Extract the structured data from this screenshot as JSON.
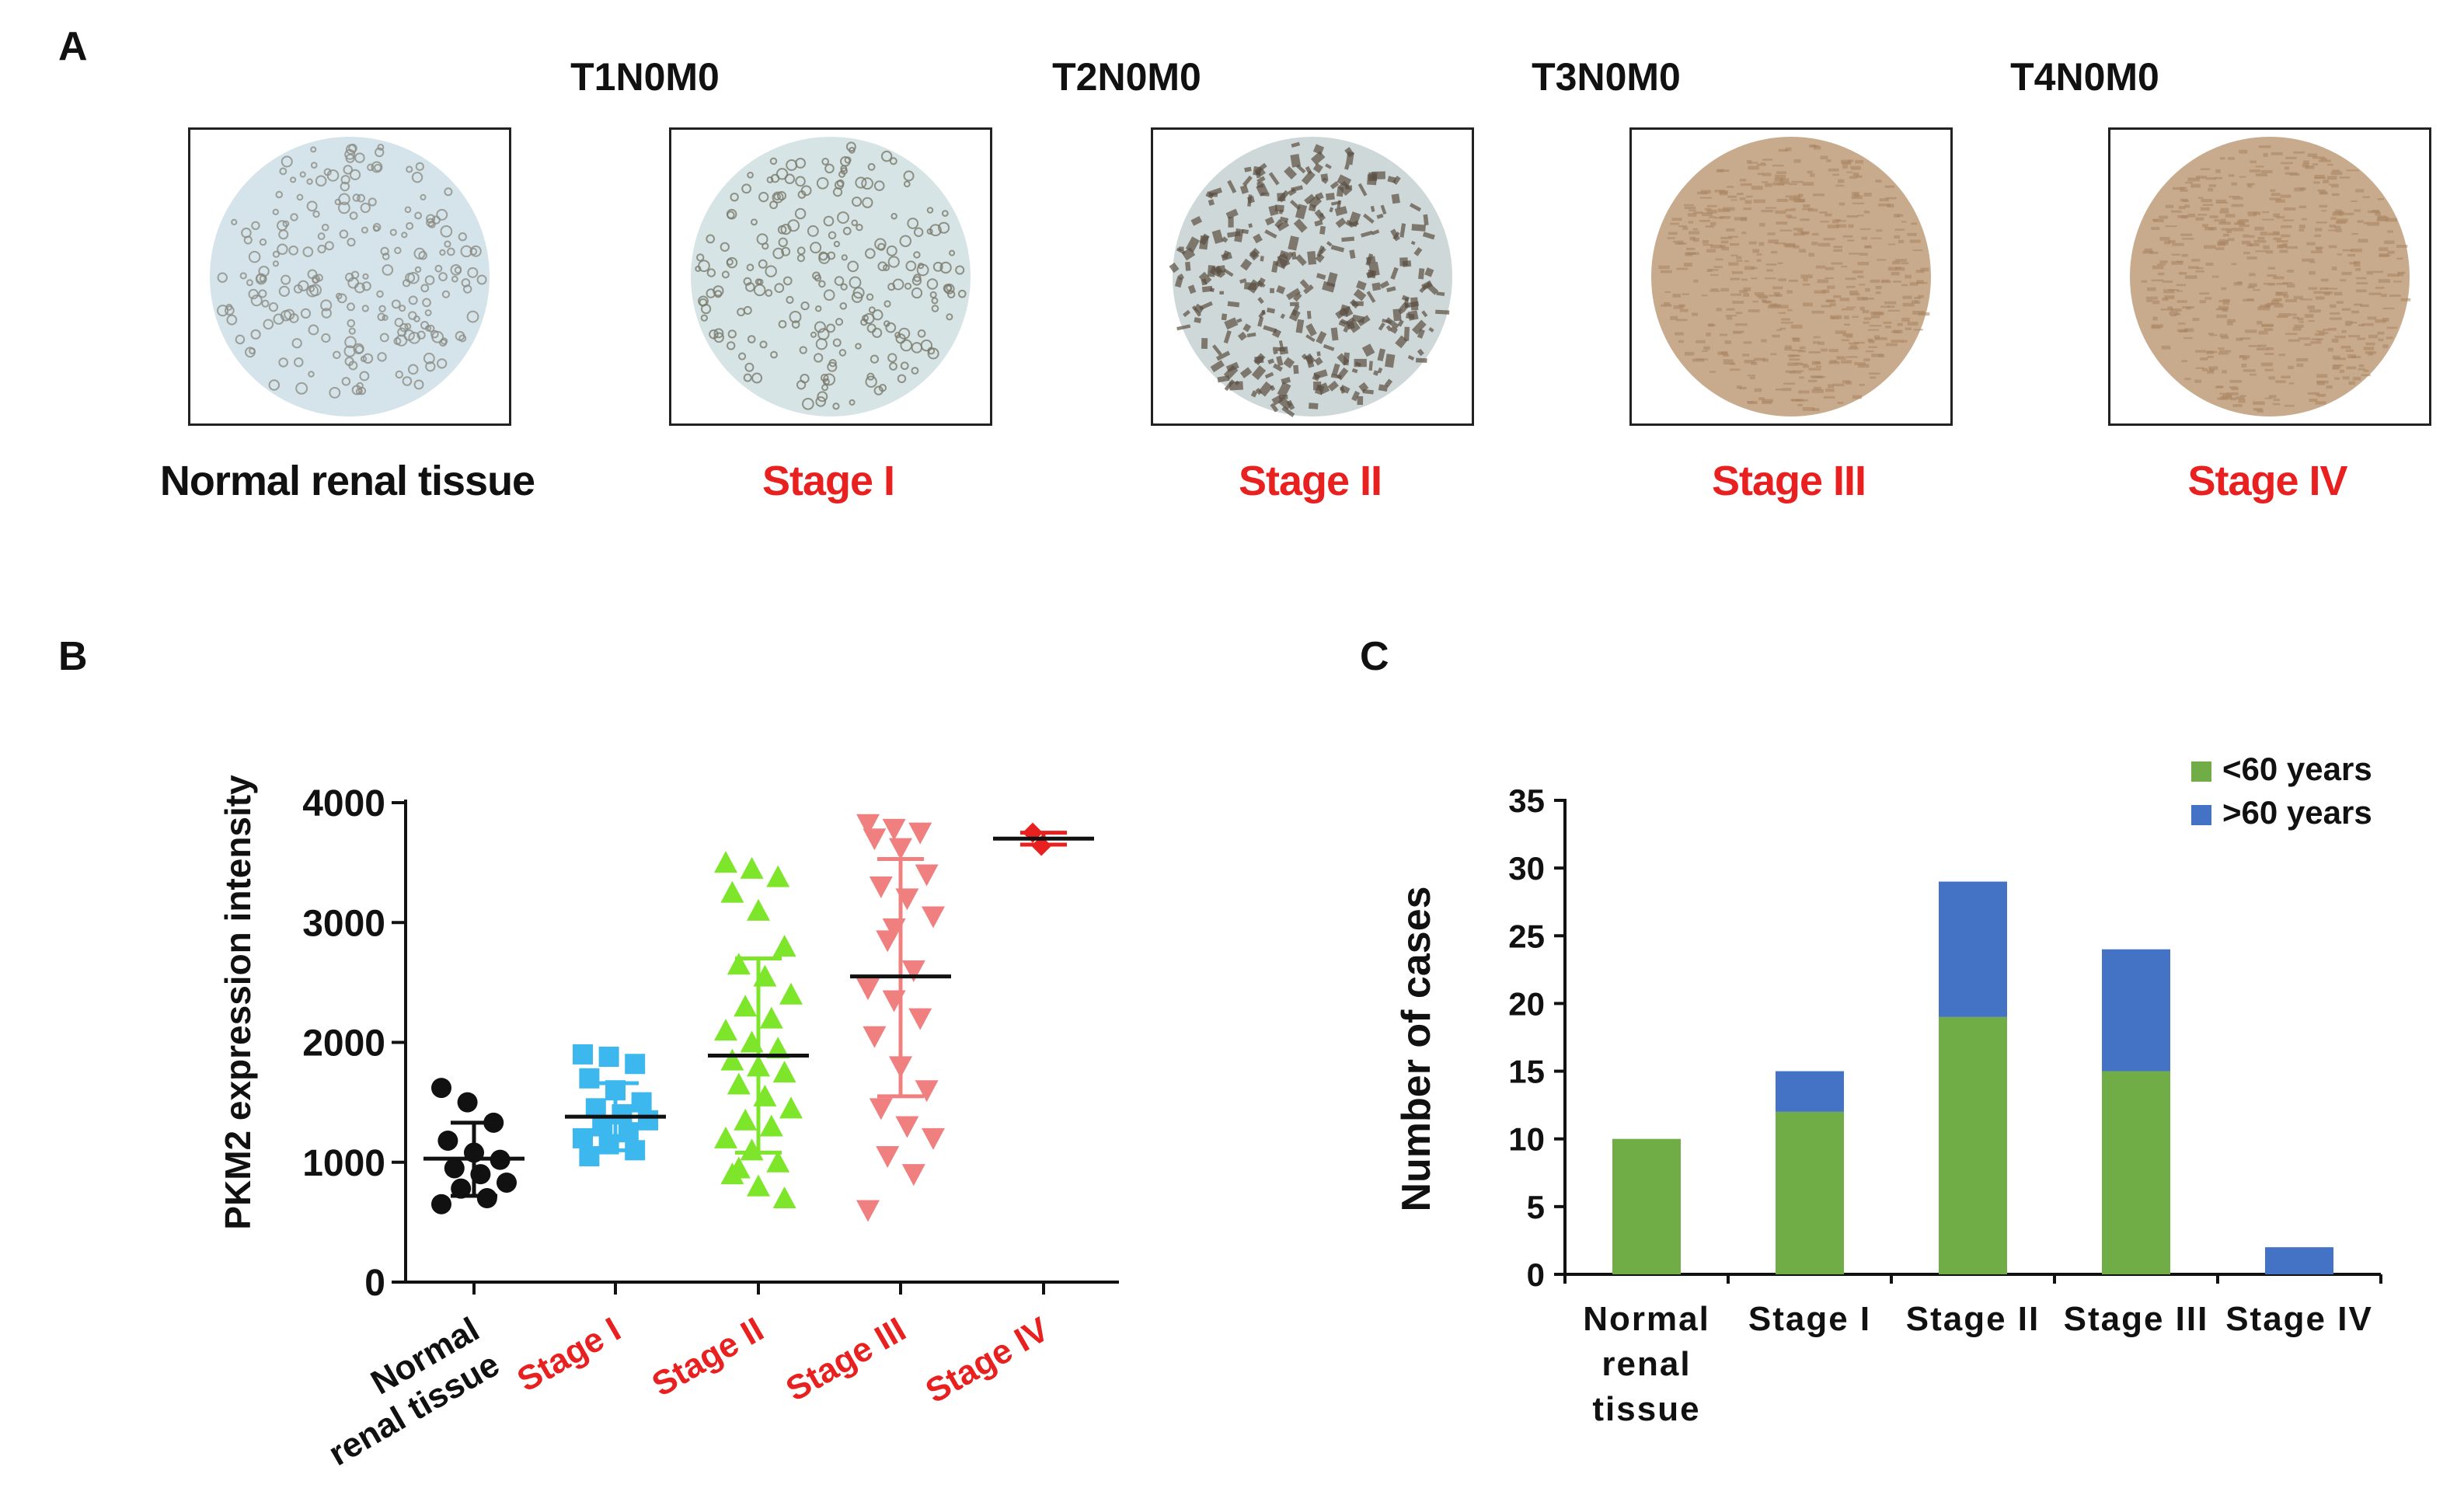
{
  "panels": {
    "a": {
      "letter": "A",
      "images": [
        {
          "top_label": "",
          "caption": "Normal renal tissue",
          "caption_color": "#111111",
          "stain": "light"
        },
        {
          "top_label": "T1N0M0",
          "caption": "Stage I",
          "caption_color": "#e8201f",
          "stain": "ring"
        },
        {
          "top_label": "T2N0M0",
          "caption": "Stage II",
          "caption_color": "#e8201f",
          "stain": "dark"
        },
        {
          "top_label": "T3N0M0",
          "caption": "Stage III",
          "caption_color": "#e8201f",
          "stain": "brown"
        },
        {
          "top_label": "T4N0M0",
          "caption": "Stage IV",
          "caption_color": "#e8201f",
          "stain": "brown"
        }
      ]
    },
    "b": {
      "letter": "B"
    },
    "c": {
      "letter": "C"
    }
  },
  "chart_data": [
    {
      "id": "B",
      "type": "scatter",
      "ylabel": "PKM2 expression   intensity",
      "xlabel": "",
      "ylim": [
        0,
        4000
      ],
      "yticks": [
        0,
        1000,
        2000,
        3000,
        4000
      ],
      "categories": [
        "Normal renal tissue",
        "Stage I",
        "Stage II",
        "Stage III",
        "Stage IV"
      ],
      "category_label_lines": [
        [
          "Normal",
          "renal tissue"
        ],
        [
          "Stage I"
        ],
        [
          "Stage II"
        ],
        [
          "Stage III"
        ],
        [
          "Stage IV"
        ]
      ],
      "series": [
        {
          "name": "Normal renal tissue",
          "marker": "circle",
          "color": "#111111",
          "label_color": "#111111",
          "mean": 1030,
          "sd_low": 720,
          "sd_high": 1330,
          "values": [
            1620,
            1500,
            1330,
            1180,
            1080,
            1020,
            950,
            900,
            830,
            780,
            700,
            650
          ]
        },
        {
          "name": "Stage I",
          "marker": "square",
          "color": "#3db8ef",
          "label_color": "#e8201f",
          "mean": 1380,
          "sd_low": 1100,
          "sd_high": 1660,
          "values": [
            1900,
            1880,
            1820,
            1700,
            1600,
            1500,
            1450,
            1400,
            1350,
            1300,
            1250,
            1200,
            1150,
            1100,
            1050
          ]
        },
        {
          "name": "Stage II",
          "marker": "triangle-up",
          "color": "#7ee62a",
          "label_color": "#e8201f",
          "mean": 1890,
          "sd_low": 1080,
          "sd_high": 2700,
          "values": [
            3500,
            3450,
            3380,
            3250,
            3100,
            2800,
            2650,
            2550,
            2400,
            2300,
            2200,
            2100,
            2000,
            1950,
            1850,
            1800,
            1750,
            1650,
            1550,
            1450,
            1350,
            1300,
            1200,
            1100,
            1000,
            900,
            800,
            700,
            950
          ]
        },
        {
          "name": "Stage III",
          "marker": "triangle-down",
          "color": "#f08080",
          "label_color": "#e8201f",
          "mean": 2550,
          "sd_low": 1550,
          "sd_high": 3530,
          "values": [
            3820,
            3780,
            3750,
            3700,
            3620,
            3400,
            3300,
            3200,
            3050,
            2850,
            2600,
            2450,
            2350,
            2200,
            2050,
            1800,
            1600,
            1450,
            1300,
            1200,
            1050,
            900,
            600,
            2950
          ]
        },
        {
          "name": "Stage IV",
          "marker": "diamond",
          "color": "#e8201f",
          "label_color": "#e8201f",
          "mean": 3700,
          "sd_low": 3650,
          "sd_high": 3750,
          "values": [
            3750,
            3640
          ]
        }
      ]
    },
    {
      "id": "C",
      "type": "bar",
      "stacked": true,
      "ylabel": "Number of cases",
      "xlabel": "",
      "ylim": [
        0,
        35
      ],
      "yticks": [
        0,
        5,
        10,
        15,
        20,
        25,
        30,
        35
      ],
      "categories": [
        "Normal renal tissue",
        "Stage I",
        "Stage II",
        "Stage III",
        "Stage IV"
      ],
      "category_label_lines": [
        [
          "Normal",
          "renal",
          "tissue"
        ],
        [
          "Stage I"
        ],
        [
          "Stage II"
        ],
        [
          "Stage III"
        ],
        [
          "Stage IV"
        ]
      ],
      "legend_position": "top-right",
      "series": [
        {
          "name": "<60 years",
          "color": "#70ad47",
          "values": [
            10,
            12,
            19,
            15,
            0
          ]
        },
        {
          "name": ">60 years",
          "color": "#4472c4",
          "values": [
            0,
            3,
            10,
            9,
            2
          ]
        }
      ]
    }
  ]
}
